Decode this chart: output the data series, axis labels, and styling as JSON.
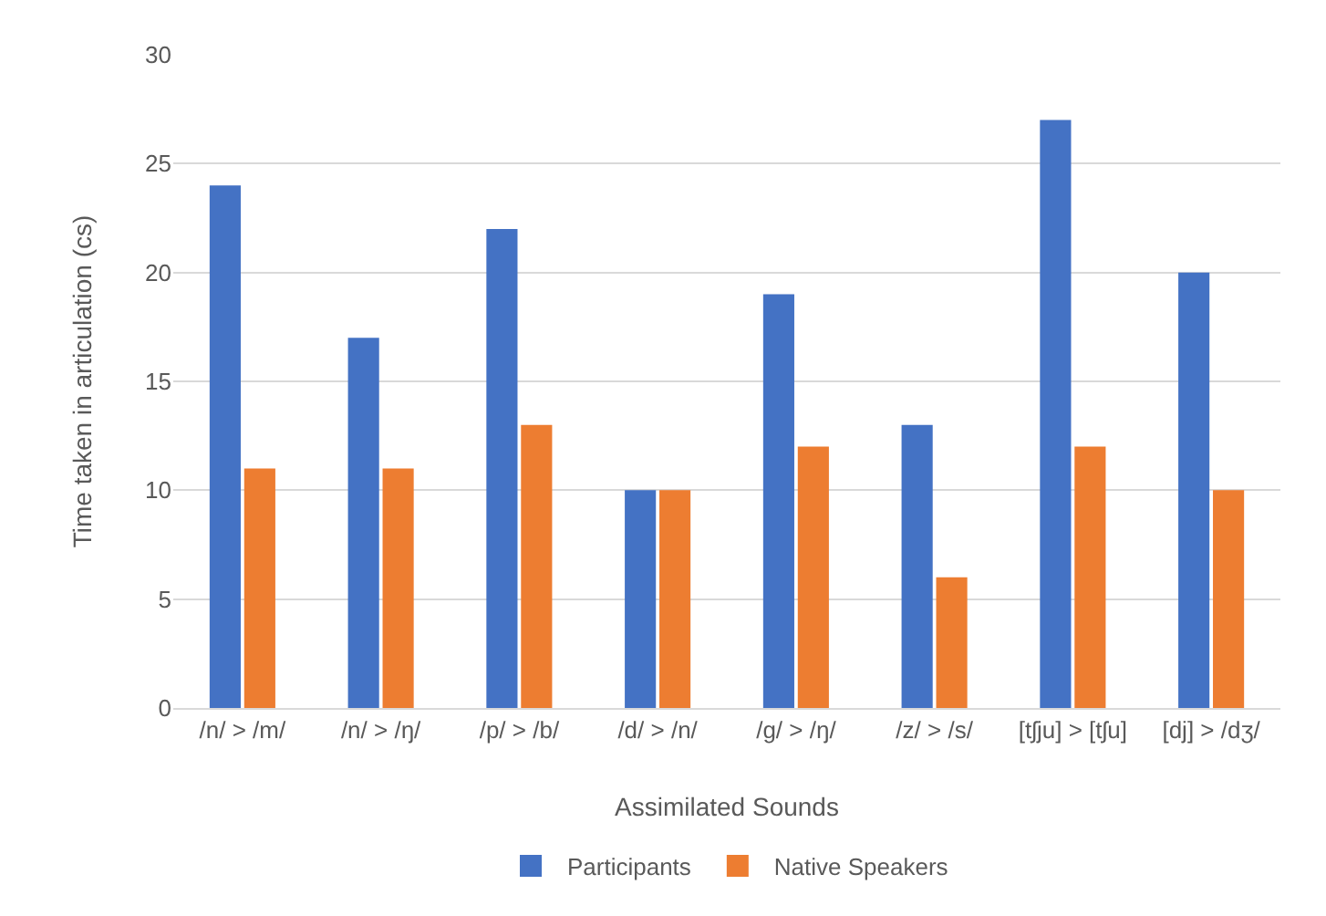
{
  "chart_data": {
    "type": "bar",
    "xlabel": "Assimilated Sounds",
    "ylabel": "Time taken in articulation (cs)",
    "categories": [
      "/n/ > /m/",
      "/n/ > /ŋ/",
      "/p/ > /b/",
      "/d/ > /n/",
      "/g/ > /ŋ/",
      "/z/ > /s/",
      "[tʃju] > [tʃu]",
      "[dj] > /dʒ/"
    ],
    "series": [
      {
        "name": "Participants",
        "color": "#4472c4",
        "values": [
          24,
          17,
          22,
          10,
          19,
          13,
          27,
          20
        ]
      },
      {
        "name": "Native Speakers",
        "color": "#ed7d31",
        "values": [
          11,
          11,
          13,
          10,
          12,
          6,
          12,
          10
        ]
      }
    ],
    "ylim": [
      0,
      30
    ],
    "yticks": [
      0,
      5,
      10,
      15,
      20,
      25,
      30
    ],
    "grid": "y",
    "legend": "bottom"
  }
}
